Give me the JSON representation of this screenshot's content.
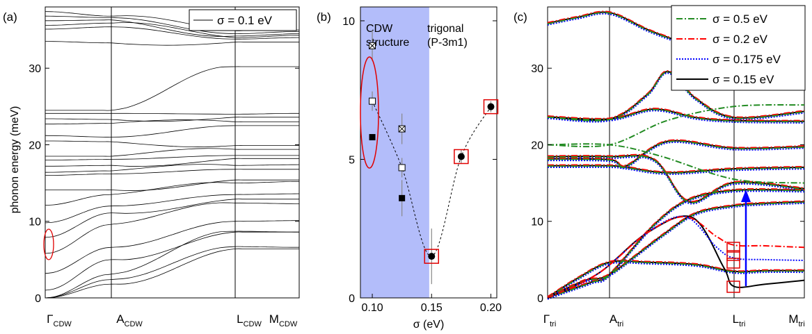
{
  "figure": {
    "panels": [
      {
        "label": "(a)",
        "ylabel": "phonon energy (meV)",
        "legend": {
          "label": "σ = 0.1 eV",
          "color": "#000000"
        },
        "kpoints": [
          {
            "main": "Γ",
            "sub": "CDW"
          },
          {
            "main": "A",
            "sub": "CDW"
          },
          {
            "main": "L",
            "sub": "CDW"
          },
          {
            "main": "M",
            "sub": "CDW"
          }
        ],
        "ylim": [
          0,
          38
        ],
        "yticks": [
          "0",
          "10",
          "20",
          "30"
        ]
      },
      {
        "label": "(b)",
        "xlabel": "σ (eV)",
        "region_left": [
          "CDW",
          "structure"
        ],
        "region_right": [
          "trigonal",
          "(P-3m1)"
        ],
        "xticks": [
          "0.10",
          "0.15",
          "0.20"
        ],
        "yticks": [
          "0",
          "5",
          "10"
        ]
      },
      {
        "label": "(c)",
        "kpoints": [
          {
            "main": "Γ",
            "sub": "tri"
          },
          {
            "main": "A",
            "sub": "tri"
          },
          {
            "main": "L",
            "sub": "tri"
          },
          {
            "main": "M",
            "sub": "tri"
          }
        ],
        "yticks": [
          "0",
          "10",
          "20",
          "30"
        ],
        "legend": [
          {
            "label": "σ =  0.5 eV",
            "color": "#228b22",
            "dash": "9,3,2,3"
          },
          {
            "label": "σ =  0.2 eV",
            "color": "#ff0000",
            "dash": "9,3,2,3"
          },
          {
            "label": "σ = 0.175 eV",
            "color": "#0000ff",
            "dash": "2,2"
          },
          {
            "label": "σ =  0.15 eV",
            "color": "#000000",
            "dash": ""
          }
        ]
      }
    ]
  },
  "chart_data": [
    {
      "type": "line",
      "title": "(a)",
      "ylabel": "phonon energy (meV)",
      "ylim": [
        0,
        38
      ],
      "x": [
        "ΓCDW",
        "ACDW",
        "LCDW",
        "MCDW"
      ],
      "series": [
        {
          "name": "σ = 0.1 eV",
          "color": "#000000",
          "branches_meV_at_kpoints": [
            [
              0,
              1.8,
              6.4,
              6.4
            ],
            [
              0,
              2.4,
              6.7,
              6.6
            ],
            [
              0,
              3.1,
              8.7,
              8.6
            ],
            [
              1.0,
              5.0,
              8.6,
              8.6
            ],
            [
              3.2,
              6.6,
              10.0,
              10.1
            ],
            [
              5.8,
              9.6,
              12.4,
              12.3
            ],
            [
              7.9,
              11.1,
              12.9,
              12.9
            ],
            [
              9.8,
              12.0,
              13.5,
              13.6
            ],
            [
              12.1,
              13.5,
              15.0,
              15.2
            ],
            [
              14.1,
              14.1,
              15.4,
              15.4
            ],
            [
              16.0,
              16.2,
              16.8,
              16.8
            ],
            [
              16.4,
              16.6,
              17.3,
              17.4
            ],
            [
              17.2,
              17.3,
              18.2,
              18.2
            ],
            [
              18.0,
              18.1,
              18.6,
              18.6
            ],
            [
              18.5,
              18.5,
              19.4,
              19.4
            ],
            [
              20.5,
              20.4,
              19.9,
              19.9
            ],
            [
              21.2,
              21.0,
              22.5,
              22.5
            ],
            [
              22.7,
              22.8,
              23.0,
              23.0
            ],
            [
              23.4,
              23.3,
              23.6,
              23.6
            ],
            [
              24.1,
              24.1,
              24.0,
              24.1
            ],
            [
              24.5,
              24.5,
              30.2,
              30.2
            ],
            [
              33.5,
              33.3,
              33.4,
              33.4
            ],
            [
              35.1,
              35.4,
              33.8,
              34.0
            ],
            [
              35.6,
              35.9,
              34.0,
              34.3
            ],
            [
              36.2,
              36.3,
              34.2,
              34.5
            ],
            [
              36.8,
              36.6,
              34.5,
              34.8
            ],
            [
              37.4,
              36.8,
              34.9,
              35.0
            ]
          ]
        }
      ]
    },
    {
      "type": "scatter",
      "title": "(b)",
      "xlabel": "σ (eV)",
      "xlim": [
        0.09,
        0.205
      ],
      "ylim": [
        0,
        10.5
      ],
      "shaded_region": [
        0.09,
        0.148
      ],
      "series": [
        {
          "name": "filled squares",
          "x": [
            0.1,
            0.125
          ],
          "y": [
            5.8,
            3.6
          ]
        },
        {
          "name": "open squares",
          "x": [
            0.1,
            0.125
          ],
          "y": [
            7.1,
            4.7
          ]
        },
        {
          "name": "crossed squares",
          "x": [
            0.1,
            0.125
          ],
          "y": [
            9.1,
            6.1
          ]
        },
        {
          "name": "filled circles",
          "x": [
            0.15,
            0.175,
            0.2
          ],
          "y": [
            1.5,
            5.1,
            6.9
          ]
        },
        {
          "name": "dashed guide",
          "x": [
            0.1,
            0.125,
            0.15,
            0.175,
            0.2
          ],
          "y": [
            7.1,
            4.7,
            1.5,
            5.1,
            6.9
          ]
        }
      ]
    },
    {
      "type": "line",
      "title": "(c)",
      "ylim": [
        0,
        38
      ],
      "x": [
        "Γtri",
        "Atri",
        "Ltri",
        "Mtri"
      ],
      "series": [
        {
          "name": "σ =  0.5 eV",
          "low_branch_at_L": 15.5
        },
        {
          "name": "σ =  0.2 eV",
          "low_branch_at_L": 6.9
        },
        {
          "name": "σ = 0.175 eV",
          "low_branch_at_L": 5.2
        },
        {
          "name": "σ =  0.15 eV",
          "low_branch_at_L": 1.5
        }
      ]
    }
  ]
}
